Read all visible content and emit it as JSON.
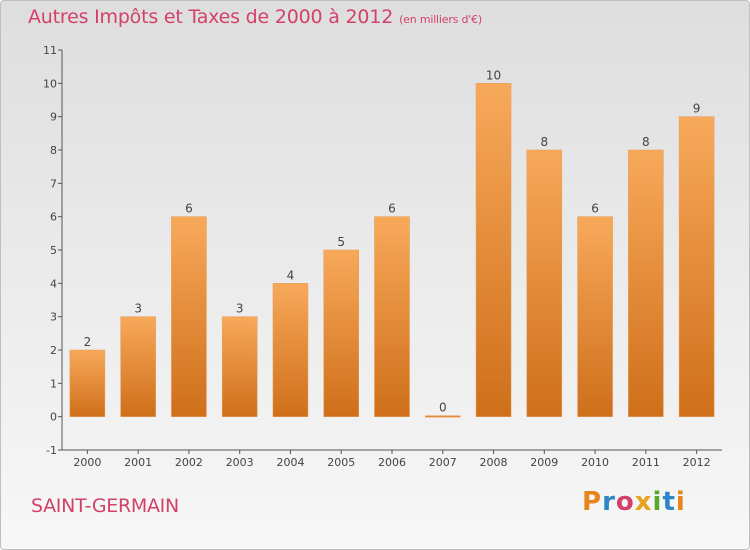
{
  "header": {
    "title": "Autres Impôts et Taxes de 2000 à 2012",
    "unit": "(en milliers d'€)"
  },
  "footer": {
    "city": "SAINT-GERMAIN",
    "logo": "Proxiti",
    "logo_colors": [
      "#e8841c",
      "#2e86c8",
      "#d3406a",
      "#e8a21c",
      "#5aa82a",
      "#2e86c8",
      "#e8841c"
    ]
  },
  "colors": {
    "bar_top": "#f7a95a",
    "bar_bottom": "#cf6f1a",
    "title": "#d3406a"
  },
  "chart_data": {
    "type": "bar",
    "categories": [
      "2000",
      "2001",
      "2002",
      "2003",
      "2004",
      "2005",
      "2006",
      "2007",
      "2008",
      "2009",
      "2010",
      "2011",
      "2012"
    ],
    "values": [
      2,
      3,
      6,
      3,
      4,
      5,
      6,
      0,
      10,
      8,
      6,
      8,
      9
    ],
    "data_labels": [
      "2",
      "3",
      "6",
      "3",
      "4",
      "5",
      "6",
      "0",
      "10",
      "8",
      "6",
      "8",
      "9"
    ],
    "ylim": [
      -1,
      11
    ],
    "yticks": [
      -1,
      0,
      1,
      2,
      3,
      4,
      5,
      6,
      7,
      8,
      9,
      10,
      11
    ],
    "ytick_labels": [
      "-1",
      "0",
      "1",
      "2",
      "3",
      "4",
      "5",
      "6",
      "7",
      "8",
      "9",
      "10",
      "11"
    ],
    "grid": false,
    "legend": false
  }
}
